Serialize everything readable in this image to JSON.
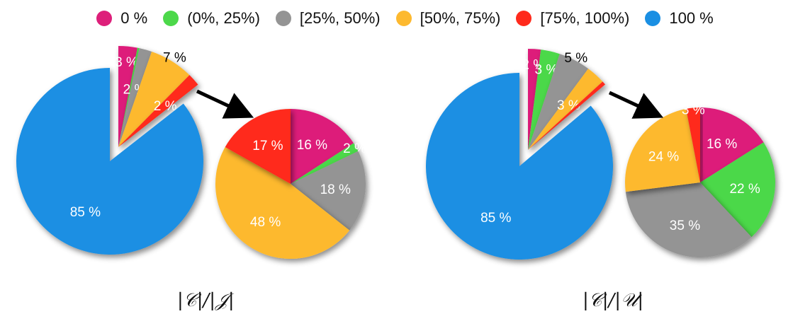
{
  "legend": [
    {
      "label": "0 %",
      "color": "#DD1F7A"
    },
    {
      "label": "(0%, 25%)",
      "color": "#4CD84A"
    },
    {
      "label": "[25%, 50%)",
      "color": "#949494"
    },
    {
      "label": "[50%, 75%)",
      "color": "#FDB92F"
    },
    {
      "label": "[75%, 100%)",
      "color": "#FF2A1C"
    },
    {
      "label": "100 %",
      "color": "#1A8FE3"
    }
  ],
  "chart_data": [
    {
      "type": "pie",
      "caption": "|𝒞|/|𝒥|",
      "categories": [
        "0 %",
        "(0%, 25%)",
        "[25%, 50%)",
        "[50%, 75%)",
        "[75%, 100%)",
        "100 %"
      ],
      "values": [
        3,
        0.3,
        2,
        7,
        2,
        85
      ],
      "labels": [
        "3 %",
        "",
        "2 %",
        "7 %",
        "2 %",
        "85 %"
      ],
      "breakdown": {
        "categories": [
          "0 %",
          "(0%, 25%)",
          "[25%, 50%)",
          "[50%, 75%)",
          "[75%, 100%)"
        ],
        "values": [
          16,
          2,
          18,
          48,
          17
        ],
        "labels": [
          "16 %",
          "2 %",
          "18 %",
          "48 %",
          "17 %"
        ]
      }
    },
    {
      "type": "pie",
      "caption": "|𝒞|/|𝒰|",
      "categories": [
        "0 %",
        "(0%, 25%)",
        "[25%, 50%)",
        "[50%, 75%)",
        "[75%, 100%)",
        "100 %"
      ],
      "values": [
        2,
        3,
        5,
        3,
        0.6,
        85
      ],
      "labels": [
        "2 %",
        "3 %",
        "5 %",
        "3 %",
        "",
        "85 %"
      ],
      "breakdown": {
        "categories": [
          "0 %",
          "(0%, 25%)",
          "[25%, 50%)",
          "[50%, 75%)",
          "[75%, 100%)"
        ],
        "values": [
          16,
          22,
          35,
          24,
          3
        ],
        "labels": [
          "16 %",
          "22 %",
          "35 %",
          "24 %",
          "3 %"
        ]
      }
    }
  ]
}
